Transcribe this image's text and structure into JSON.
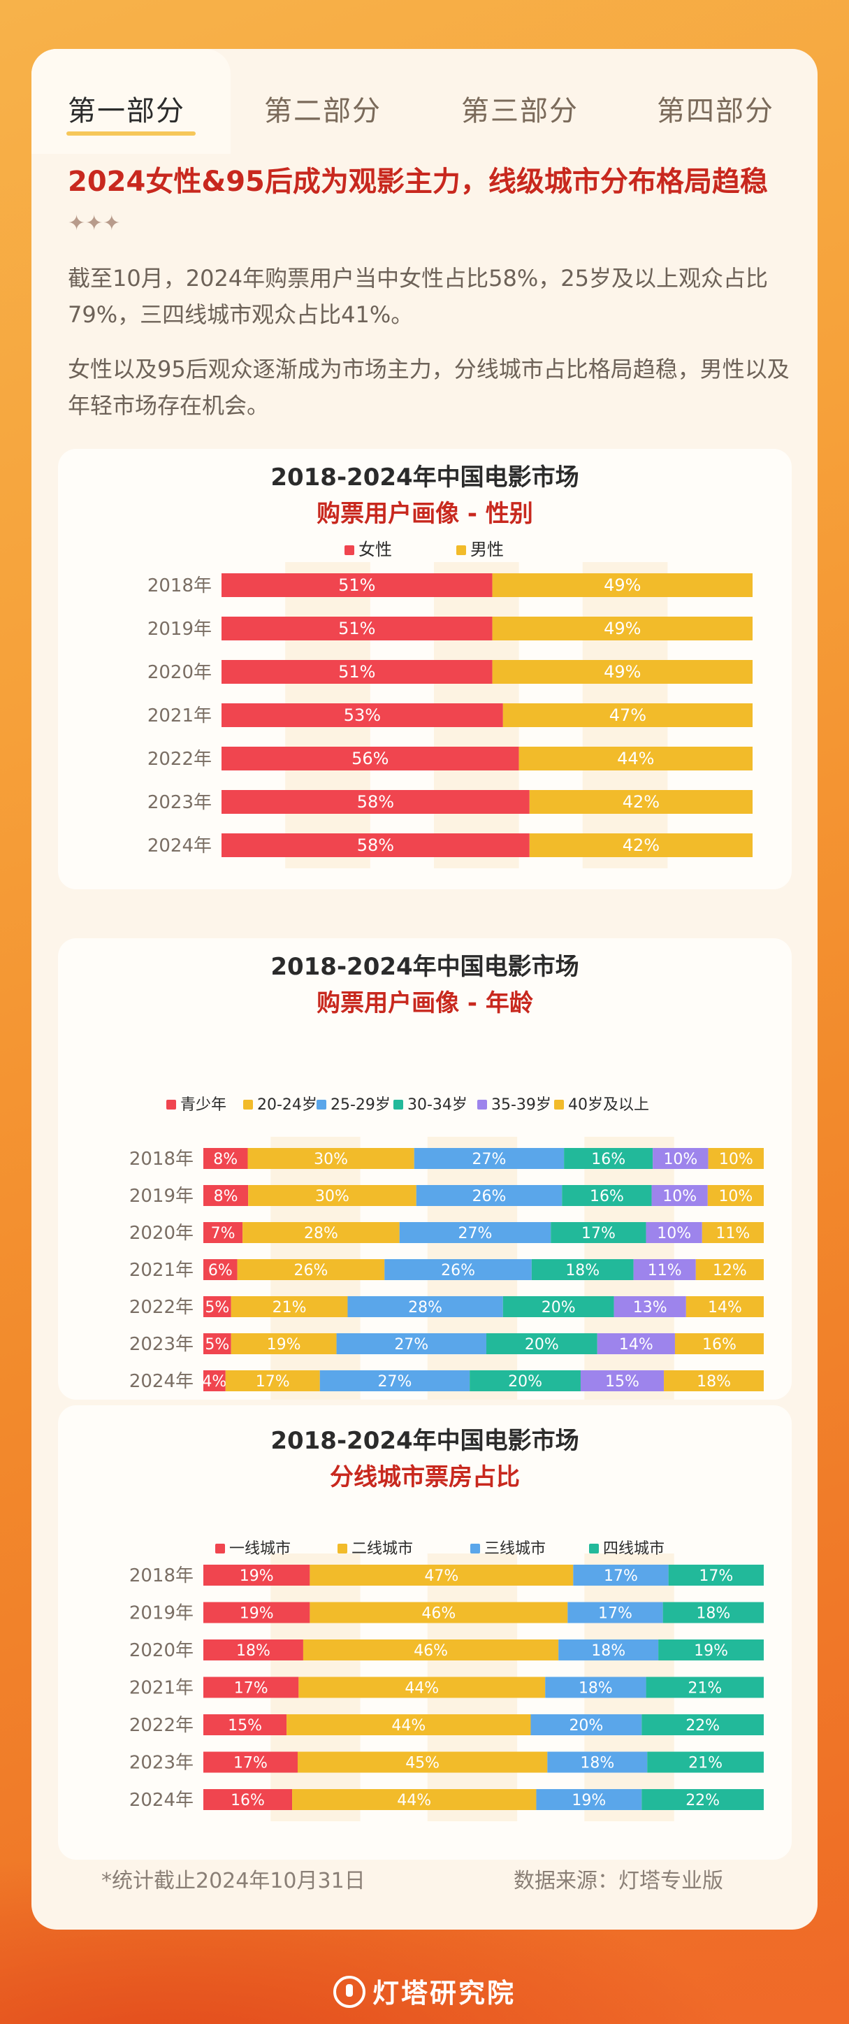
{
  "tabs": [
    "第一部分",
    "第二部分",
    "第三部分",
    "第四部分"
  ],
  "headline": "2024女性&95后成为观影主力，线级城市分布格局趋稳",
  "headline_decor": "✦✦✦",
  "paragraphs": [
    "截至10月，2024年购票用户当中女性占比58%，25岁及以上观众占比79%，三四线城市观众占比41%。",
    "女性以及95后观众逐渐成为市场主力，分线城市占比格局趋稳，男性以及年轻市场存在机会。"
  ],
  "footnote_left": "*统计截止2024年10月31日",
  "footnote_right": "数据来源：灯塔专业版",
  "brand": "灯塔研究院",
  "chart_data": [
    {
      "type": "bar",
      "stacked": true,
      "orientation": "horizontal",
      "title": "2018-2024年中国电影市场",
      "subtitle": "购票用户画像 - 性别",
      "categories": [
        "2018年",
        "2019年",
        "2020年",
        "2021年",
        "2022年",
        "2023年",
        "2024年"
      ],
      "series": [
        {
          "name": "女性",
          "color": "#f0454f",
          "values": [
            51,
            51,
            51,
            53,
            56,
            58,
            58
          ]
        },
        {
          "name": "男性",
          "color": "#f2bb2a",
          "values": [
            49,
            49,
            49,
            47,
            44,
            42,
            42
          ]
        }
      ]
    },
    {
      "type": "bar",
      "stacked": true,
      "orientation": "horizontal",
      "title": "2018-2024年中国电影市场",
      "subtitle": "购票用户画像 - 年龄",
      "categories": [
        "2018年",
        "2019年",
        "2020年",
        "2021年",
        "2022年",
        "2023年",
        "2024年"
      ],
      "series": [
        {
          "name": "青少年",
          "color": "#f0454f",
          "values": [
            8,
            8,
            7,
            6,
            5,
            5,
            4
          ]
        },
        {
          "name": "20-24岁",
          "color": "#f2bb2a",
          "values": [
            30,
            30,
            28,
            26,
            21,
            19,
            17
          ]
        },
        {
          "name": "25-29岁",
          "color": "#5aa6ea",
          "values": [
            27,
            26,
            27,
            26,
            28,
            27,
            27
          ]
        },
        {
          "name": "30-34岁",
          "color": "#22b99a",
          "values": [
            16,
            16,
            17,
            18,
            20,
            20,
            20
          ]
        },
        {
          "name": "35-39岁",
          "color": "#9d84ec",
          "values": [
            10,
            10,
            10,
            11,
            13,
            14,
            15
          ]
        },
        {
          "name": "40岁及以上",
          "color": "#f2bb2a",
          "values": [
            10,
            10,
            11,
            12,
            14,
            16,
            18
          ]
        }
      ]
    },
    {
      "type": "bar",
      "stacked": true,
      "orientation": "horizontal",
      "title": "2018-2024年中国电影市场",
      "subtitle": "分线城市票房占比",
      "categories": [
        "2018年",
        "2019年",
        "2020年",
        "2021年",
        "2022年",
        "2023年",
        "2024年"
      ],
      "series": [
        {
          "name": "一线城市",
          "color": "#f0454f",
          "values": [
            19,
            19,
            18,
            17,
            15,
            17,
            16
          ]
        },
        {
          "name": "二线城市",
          "color": "#f2bb2a",
          "values": [
            47,
            46,
            46,
            44,
            44,
            45,
            44
          ]
        },
        {
          "name": "三线城市",
          "color": "#5aa6ea",
          "values": [
            17,
            17,
            18,
            18,
            20,
            18,
            19
          ]
        },
        {
          "name": "四线城市",
          "color": "#22b99a",
          "values": [
            17,
            18,
            19,
            21,
            22,
            21,
            22
          ]
        }
      ]
    }
  ]
}
